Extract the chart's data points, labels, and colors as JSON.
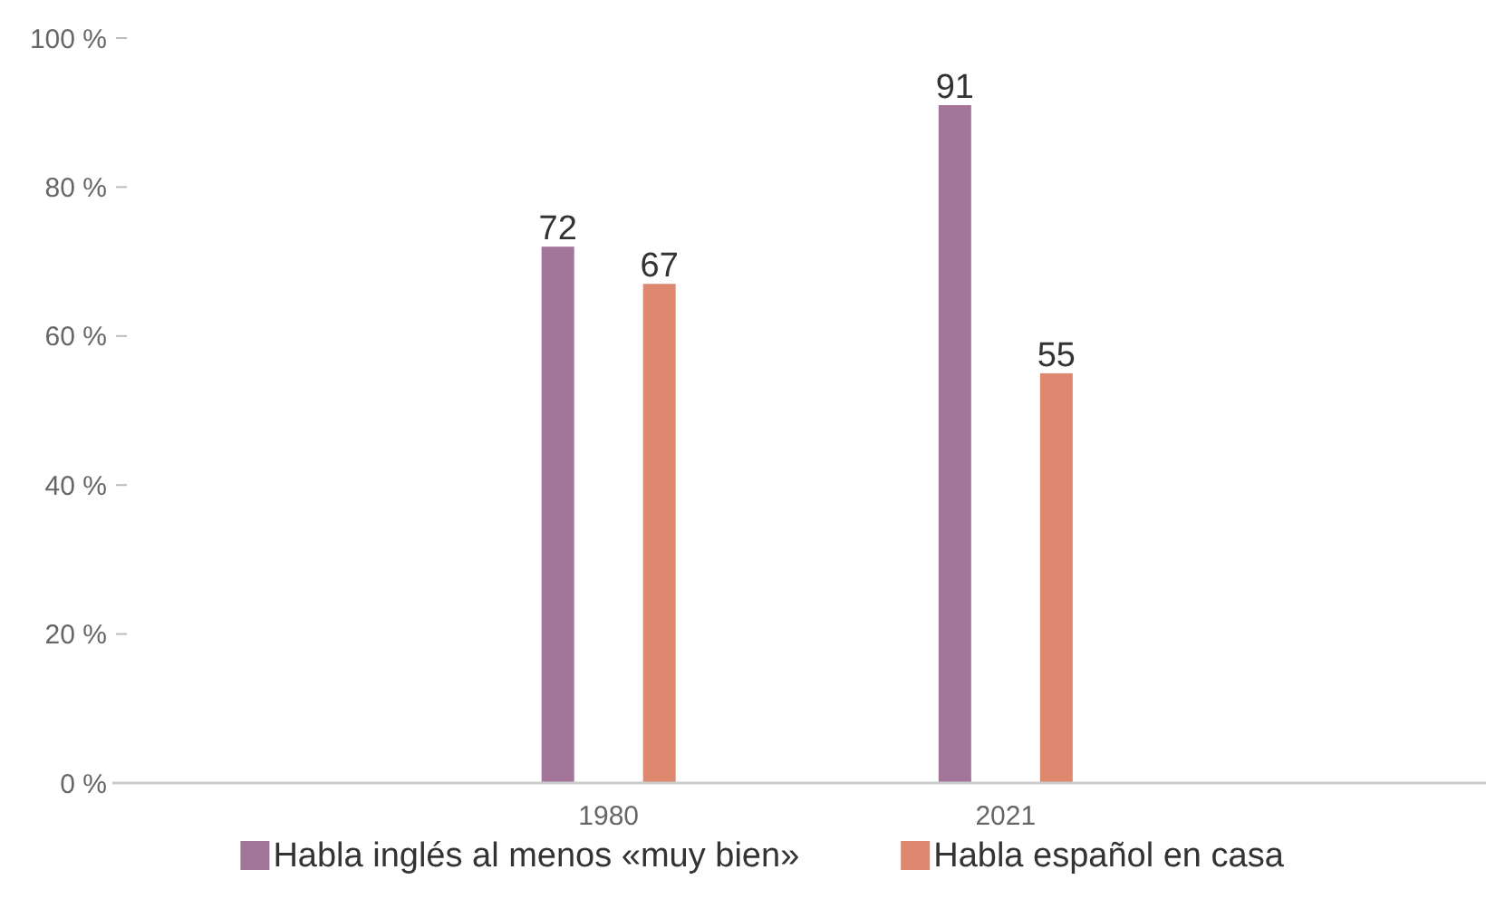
{
  "chart_data": {
    "type": "bar",
    "categories": [
      "1980",
      "2021"
    ],
    "series": [
      {
        "name": "Habla inglés al menos «muy bien»",
        "color": "#a37699",
        "values": [
          72,
          91
        ]
      },
      {
        "name": "Habla español en casa",
        "color": "#df8870",
        "values": [
          67,
          55
        ]
      }
    ],
    "ylim": [
      0,
      100
    ],
    "yticks": [
      {
        "value": 0,
        "label": "0 %"
      },
      {
        "value": 20,
        "label": "20 %"
      },
      {
        "value": 40,
        "label": "40 %"
      },
      {
        "value": 60,
        "label": "60 %"
      },
      {
        "value": 80,
        "label": "80 %"
      },
      {
        "value": 100,
        "label": "100 %"
      }
    ],
    "data_labels": true,
    "legend": "bottom",
    "grid": false
  }
}
